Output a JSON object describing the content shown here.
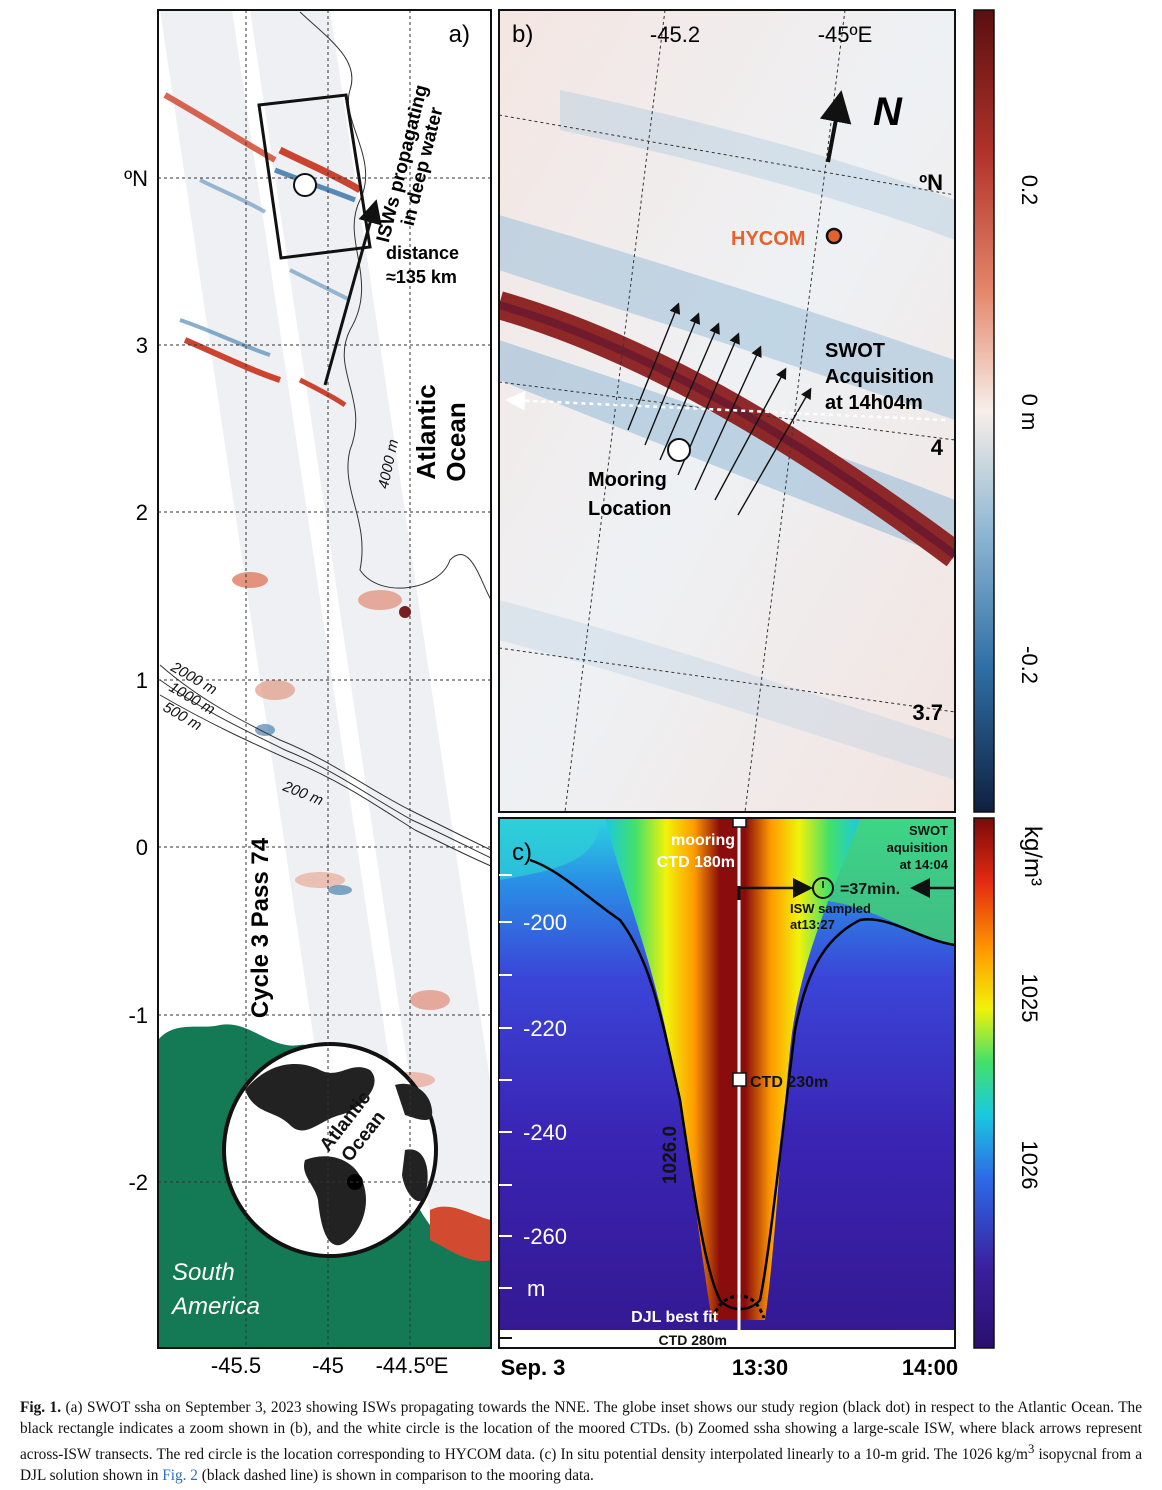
{
  "panel_a": {
    "label": "a)",
    "lat_ticks": [
      "ºN",
      "3",
      "2",
      "1",
      "0",
      "-1",
      "-2"
    ],
    "lon_ticks": [
      "-45.5",
      "-45",
      "-44.5ºE"
    ],
    "annot_isw": "ISWs propagating",
    "annot_isw2": "in deep water",
    "annot_distance": "distance",
    "annot_distance2": "≈135 km",
    "ocean_label": "Atlantic",
    "ocean_label2": "Ocean",
    "contour_4000": "4000 m",
    "contour_2000": "2000 m",
    "contour_1000": "1000 m",
    "contour_500": "500 m",
    "contour_200": "200 m",
    "pass_label": "Cycle 3 Pass 74",
    "globe_label": "Atlantic",
    "globe_label2": "Ocean",
    "land_label": "South",
    "land_label2": "America"
  },
  "panel_b": {
    "label": "b)",
    "lon_ticks": [
      "-45.2",
      "-45ºE"
    ],
    "lat_ticks": [
      "ºN",
      "4",
      "3.7"
    ],
    "north": "N",
    "hycom": "HYCOM",
    "swot1": "SWOT",
    "swot2": "Acquisition",
    "swot3": "at 14h04m",
    "mooring1": "Mooring",
    "mooring2": "Location"
  },
  "colorbar_b": {
    "ticks": [
      "0.2",
      "0 m",
      "-0.2"
    ],
    "colors": [
      "#5a0f0f",
      "#b2332b",
      "#e4866b",
      "#f7efea",
      "#8fb7d3",
      "#2f6fa5",
      "#0f2040"
    ]
  },
  "panel_c": {
    "label": "c)",
    "y_ticks": [
      "-200",
      "-220",
      "-240",
      "-260",
      "m"
    ],
    "x_ticks": [
      "Sep. 3",
      "13:30",
      "14:00"
    ],
    "ctd180a": "mooring",
    "ctd180b": "CTD 180m",
    "ctd230": "CTD 230m",
    "ctd280": "CTD 280m",
    "swot1": "SWOT",
    "swot2": "aquisition",
    "swot3": "at 14:04",
    "dt": "=37min.",
    "isw1": "ISW sampled",
    "isw2": "at13:27",
    "isopycnal": "1026.0",
    "djl": "DJL best fit"
  },
  "colorbar_c": {
    "unit": "kg/m³",
    "ticks": [
      "1025",
      "1026"
    ],
    "colors": [
      "#7a0a0a",
      "#e32a12",
      "#ff9a00",
      "#f2f20a",
      "#44e06a",
      "#19c9e0",
      "#2d6ae6",
      "#3a1f9e",
      "#2a0f6e"
    ]
  },
  "caption": {
    "fig_label": "Fig. 1.",
    "text1": "(a) SWOT ssha on September 3, 2023 showing ISWs propagating towards the NNE. The globe inset shows our study region (black dot) in respect to the Atlantic Ocean. The black rectangle indicates a zoom shown in (b), and the white circle is the location of the moored CTDs. (b) Zoomed ssha showing a large-scale ISW, where black arrows represent across-ISW transects. The red circle is the location corresponding to HYCOM data. (c) In situ potential density interpolated linearly to a 10-m grid. The 1026 kg/m",
    "sup": "3",
    "text2": " isopycnal from a DJL solution shown in ",
    "link": "Fig. 2",
    "text3": " (black dashed line) is shown in comparison to the mooring data."
  }
}
